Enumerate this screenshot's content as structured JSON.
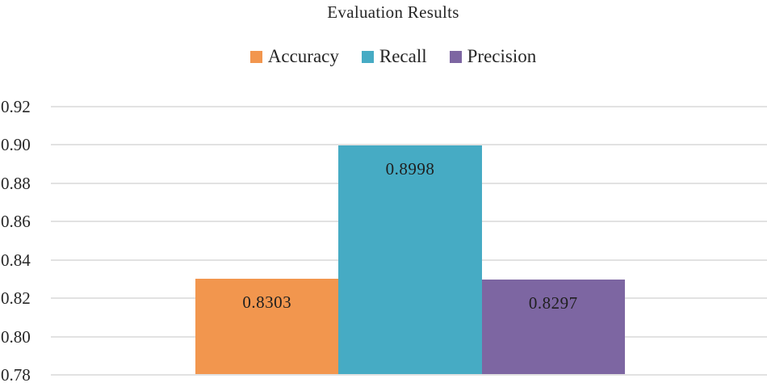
{
  "chart_data": {
    "type": "bar",
    "title": "Evaluation Results",
    "categories": [
      ""
    ],
    "series": [
      {
        "name": "Accuracy",
        "values": [
          0.8303
        ],
        "labels": [
          "0.8303"
        ],
        "color": "#F2964E"
      },
      {
        "name": "Recall",
        "values": [
          0.8998
        ],
        "labels": [
          "0.8998"
        ],
        "color": "#46ABC4"
      },
      {
        "name": "Precision",
        "values": [
          0.8297
        ],
        "labels": [
          "0.8297"
        ],
        "color": "#7D66A2"
      }
    ],
    "xlabel": "",
    "ylabel": "",
    "ylim": [
      0.78,
      0.92
    ],
    "yticks": [
      0.78,
      0.8,
      0.82,
      0.84,
      0.86,
      0.88,
      0.9,
      0.92
    ],
    "ytick_labels": [
      "0.78",
      "0.80",
      "0.82",
      "0.84",
      "0.86",
      "0.88",
      "0.90",
      "0.92"
    ],
    "grid": "horizontal",
    "legend_position": "top",
    "background_color": "#FFFFFF",
    "gridline_color": "#E2E2E2",
    "text_color": "#262626"
  }
}
